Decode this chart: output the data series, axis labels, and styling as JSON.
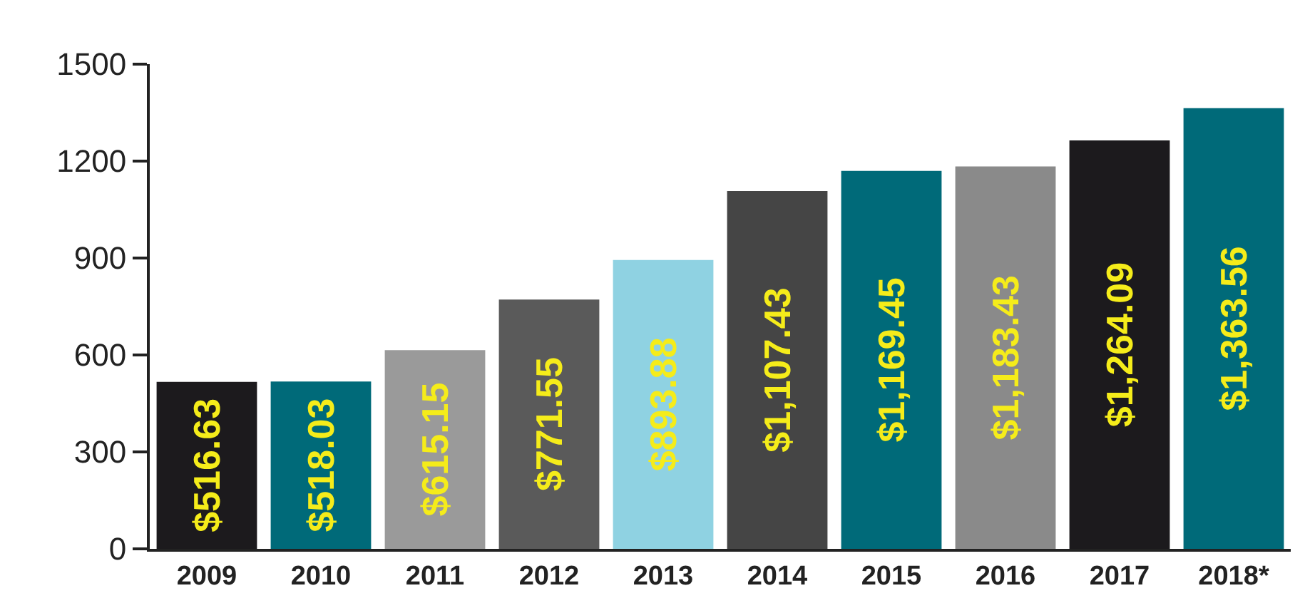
{
  "chart_data": {
    "type": "bar",
    "categories": [
      "2009",
      "2010",
      "2011",
      "2012",
      "2013",
      "2014",
      "2015",
      "2016",
      "2017",
      "2018*"
    ],
    "values": [
      516.63,
      518.03,
      615.15,
      771.55,
      893.88,
      1107.43,
      1169.45,
      1183.43,
      1264.09,
      1363.56
    ],
    "colors": [
      "#1c1a1d",
      "#006a79",
      "#9a9a9a",
      "#5a5a5a",
      "#8fd2e2",
      "#454545",
      "#006a79",
      "#8a8a8a",
      "#1c1a1d",
      "#006a79"
    ],
    "value_labels": [
      "$516.63",
      "$518.03",
      "$615.15",
      "$771.55",
      "$893.88",
      "$1,107.43",
      "$1,169.45",
      "$1,183.43",
      "$1,264.09",
      "$1,363.56"
    ],
    "ylim": [
      0,
      1500
    ],
    "yticks": [
      0,
      300,
      600,
      900,
      1200,
      1500
    ]
  }
}
